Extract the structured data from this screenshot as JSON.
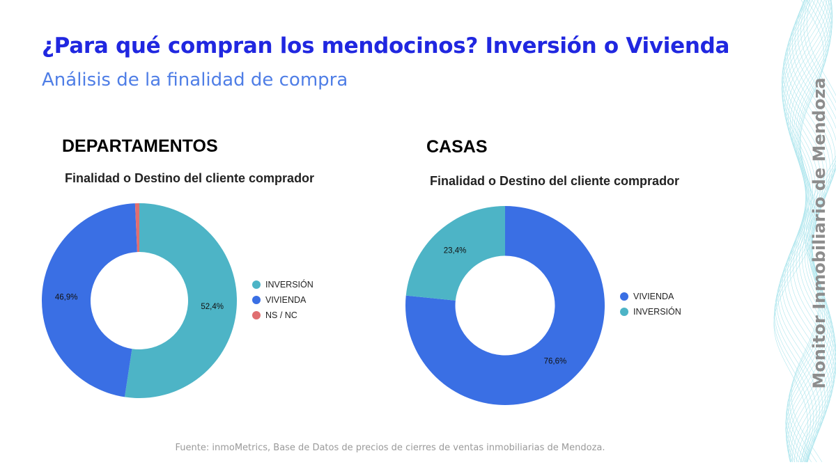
{
  "header": {
    "title": "¿Para qué compran los mendocinos? Inversión o Vivienda",
    "subtitle": "Análisis de la finalidad de compra"
  },
  "side_brand": "Monitor Inmobiliario de Mendoza",
  "footer": "Fuente: inmoMetrics, Base de Datos de precios de cierres de ventas inmobiliarias de Mendoza.",
  "sections": [
    {
      "label": "DEPARTAMENTOS"
    },
    {
      "label": "CASAS"
    }
  ],
  "colors": {
    "inversion": "#4db4c6",
    "vivienda": "#3a6fe4",
    "nsnc": "#e06e70",
    "title": "#2027e0",
    "subtitle": "#4f7ee6"
  },
  "chart_data": [
    {
      "type": "pie",
      "title": "Finalidad o Destino del cliente comprador",
      "legend_position": "right",
      "slices": [
        {
          "label": "INVERSIÓN",
          "value": 52.4,
          "display": "52,4%",
          "color": "#4db4c6"
        },
        {
          "label": "VIVIENDA",
          "value": 46.9,
          "display": "46,9%",
          "color": "#3a6fe4"
        },
        {
          "label": "NS / NC",
          "value": 0.7,
          "display": "",
          "color": "#e06e70"
        }
      ]
    },
    {
      "type": "pie",
      "title": "Finalidad o Destino del cliente comprador",
      "legend_position": "right",
      "slices": [
        {
          "label": "VIVIENDA",
          "value": 76.6,
          "display": "76,6%",
          "color": "#3a6fe4"
        },
        {
          "label": "INVERSIÓN",
          "value": 23.4,
          "display": "23,4%",
          "color": "#4db4c6"
        }
      ]
    }
  ]
}
